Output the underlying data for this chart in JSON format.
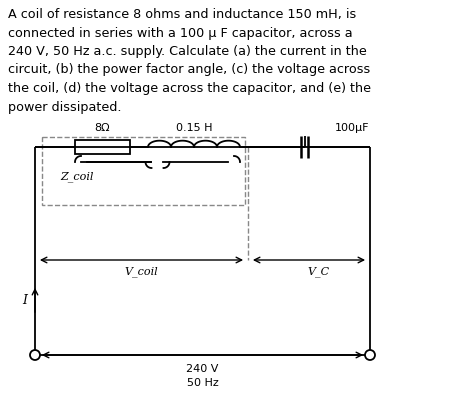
{
  "title_text": "A coil of resistance 8 ohms and inductance 150 mH, is\nconnected in series with a 100 μ F capacitor, across a\n240 V, 50 Hz a.c. supply. Calculate (a) the current in the\ncircuit, (b) the power factor angle, (c) the voltage across\nthe coil, (d) the voltage across the capacitor, and (e) the\npower dissipated.",
  "bg_color": "#ffffff",
  "line_color": "#000000",
  "dashed_color": "#888888",
  "resistor_label": "8Ω",
  "inductor_label": "0.15 H",
  "capacitor_label": "100μF",
  "zcoil_label": "Z_coil",
  "vcoil_label": "V_coil",
  "vc_label": "V_C",
  "supply_label1": "240 V",
  "supply_label2": "50 Hz",
  "current_label": "I"
}
